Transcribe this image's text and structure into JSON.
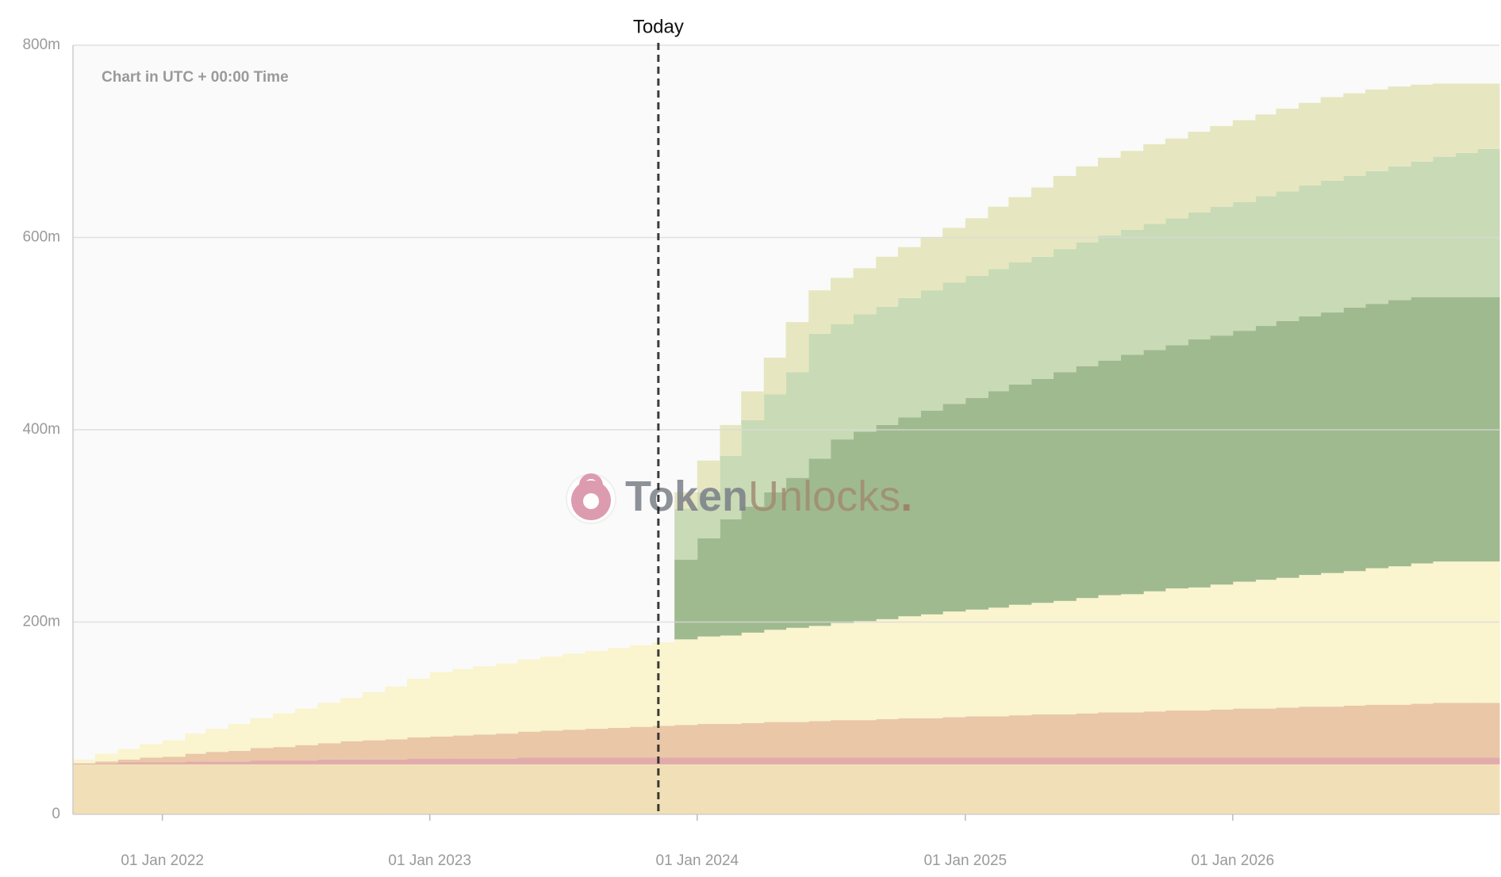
{
  "chart_data": {
    "type": "area",
    "step": true,
    "stacked": true,
    "grid": true,
    "note": "Chart in UTC + 00:00 Time",
    "today": {
      "label": "Today",
      "x": "2023-11-09"
    },
    "watermark": [
      "Token",
      "Unlocks",
      "."
    ],
    "xlim": [
      "2021-09-01",
      "2026-12-31"
    ],
    "xticks": [
      {
        "value": "2022-01-01",
        "label": "01 Jan 2022"
      },
      {
        "value": "2023-01-01",
        "label": "01 Jan 2023"
      },
      {
        "value": "2024-01-01",
        "label": "01 Jan 2024"
      },
      {
        "value": "2025-01-01",
        "label": "01 Jan 2025"
      },
      {
        "value": "2026-01-01",
        "label": "01 Jan 2026"
      }
    ],
    "ylim": [
      0,
      800
    ],
    "yticks": [
      0,
      {
        "value": 200,
        "label": "200m"
      },
      {
        "value": 400,
        "label": "400m"
      },
      {
        "value": 600,
        "label": "600m"
      },
      {
        "value": 800,
        "label": "800m"
      }
    ],
    "x": [
      "2021-09-01",
      "2021-10-01",
      "2021-11-01",
      "2021-12-01",
      "2022-01-01",
      "2022-02-01",
      "2022-03-01",
      "2022-04-01",
      "2022-05-01",
      "2022-06-01",
      "2022-07-01",
      "2022-08-01",
      "2022-09-01",
      "2022-10-01",
      "2022-11-01",
      "2022-12-01",
      "2023-01-01",
      "2023-02-01",
      "2023-03-01",
      "2023-04-01",
      "2023-05-01",
      "2023-06-01",
      "2023-07-01",
      "2023-08-01",
      "2023-09-01",
      "2023-10-01",
      "2023-11-01",
      "2023-12-01",
      "2024-01-01",
      "2024-02-01",
      "2024-03-01",
      "2024-04-01",
      "2024-05-01",
      "2024-06-01",
      "2024-07-01",
      "2024-08-01",
      "2024-09-01",
      "2024-10-01",
      "2024-11-01",
      "2024-12-01",
      "2025-01-01",
      "2025-02-01",
      "2025-03-01",
      "2025-04-01",
      "2025-05-01",
      "2025-06-01",
      "2025-07-01",
      "2025-08-01",
      "2025-09-01",
      "2025-10-01",
      "2025-11-01",
      "2025-12-01",
      "2026-01-01",
      "2026-02-01",
      "2026-03-01",
      "2026-04-01",
      "2026-05-01",
      "2026-06-01",
      "2026-07-01",
      "2026-08-01",
      "2026-09-01",
      "2026-10-01",
      "2026-11-01",
      "2026-12-01"
    ],
    "series": [
      {
        "color": "#f1e0b7",
        "values": [
          52,
          52,
          52,
          52,
          52,
          52,
          52,
          52,
          52,
          52,
          52,
          52,
          52,
          52,
          52,
          52,
          52,
          52,
          52,
          52,
          52,
          52,
          52,
          52,
          52,
          52,
          52,
          52,
          52,
          52,
          52,
          52,
          52,
          52,
          52,
          52,
          52,
          52,
          52,
          52,
          52,
          52,
          52,
          52,
          52,
          52,
          52,
          52,
          52,
          52,
          52,
          52,
          52,
          52,
          52,
          52,
          52,
          52,
          52,
          52,
          52,
          52,
          52,
          52
        ]
      },
      {
        "color": "#e2abab",
        "values": [
          1,
          1,
          2,
          2,
          2,
          3,
          3,
          3,
          4,
          4,
          4,
          5,
          5,
          5,
          5,
          6,
          6,
          6,
          6,
          6,
          7,
          7,
          7,
          7,
          7,
          7,
          7,
          7,
          7,
          7,
          7,
          7,
          7,
          7,
          7,
          7,
          7,
          7,
          7,
          7,
          7,
          7,
          7,
          7,
          7,
          7,
          7,
          7,
          7,
          7,
          7,
          7,
          7,
          7,
          7,
          7,
          7,
          7,
          7,
          7,
          7,
          7,
          7,
          7
        ]
      },
      {
        "color": "#e9c7a7",
        "values": [
          0,
          2,
          3,
          5,
          6,
          8,
          10,
          11,
          13,
          14,
          16,
          17,
          19,
          20,
          21,
          22,
          23,
          24,
          25,
          26,
          27,
          28,
          29,
          30,
          31,
          32,
          33,
          34,
          35,
          35,
          36,
          37,
          37,
          38,
          39,
          39,
          40,
          41,
          41,
          42,
          43,
          43,
          44,
          45,
          45,
          46,
          47,
          47,
          48,
          49,
          49,
          50,
          51,
          51,
          52,
          53,
          53,
          54,
          55,
          55,
          56,
          57,
          57,
          57
        ]
      },
      {
        "color": "#faf4cf",
        "values": [
          4,
          8,
          11,
          14,
          17,
          21,
          24,
          28,
          31,
          35,
          38,
          42,
          45,
          50,
          55,
          61,
          67,
          69,
          71,
          73,
          75,
          77,
          79,
          81,
          83,
          85,
          87,
          89,
          91,
          92,
          94,
          96,
          98,
          99,
          101,
          103,
          104,
          106,
          108,
          110,
          111,
          113,
          115,
          116,
          118,
          120,
          122,
          123,
          125,
          127,
          128,
          130,
          132,
          134,
          135,
          137,
          139,
          140,
          142,
          144,
          146,
          147,
          147,
          147
        ]
      },
      {
        "color": "#a0ba8f",
        "values": [
          null,
          null,
          null,
          null,
          null,
          null,
          null,
          null,
          null,
          null,
          null,
          null,
          null,
          null,
          null,
          null,
          null,
          null,
          null,
          null,
          null,
          null,
          null,
          null,
          null,
          null,
          null,
          83,
          102,
          121,
          131,
          143,
          156,
          174,
          191,
          197,
          202,
          207,
          212,
          216,
          220,
          225,
          229,
          233,
          238,
          241,
          244,
          249,
          251,
          253,
          258,
          259,
          261,
          264,
          267,
          269,
          271,
          274,
          275,
          277,
          277,
          275,
          275,
          275
        ]
      },
      {
        "color": "#c9dab6",
        "values": [
          null,
          null,
          null,
          null,
          null,
          null,
          null,
          null,
          null,
          null,
          null,
          null,
          null,
          null,
          null,
          null,
          null,
          null,
          null,
          null,
          null,
          null,
          null,
          null,
          null,
          null,
          null,
          53,
          48,
          66,
          90,
          102,
          110,
          130,
          120,
          122,
          123,
          124,
          125,
          126,
          127,
          127,
          127,
          127,
          128,
          129,
          130,
          130,
          131,
          132,
          132,
          134,
          134,
          135,
          135,
          136,
          137,
          137,
          138,
          139,
          141,
          146,
          150,
          154
        ]
      },
      {
        "color": "#e6e7c0",
        "values": [
          null,
          null,
          null,
          null,
          null,
          null,
          null,
          null,
          null,
          null,
          null,
          null,
          null,
          null,
          null,
          null,
          null,
          null,
          null,
          null,
          null,
          null,
          null,
          null,
          null,
          null,
          null,
          17,
          33,
          32,
          30,
          38,
          52,
          45,
          48,
          48,
          52,
          53,
          55,
          57,
          60,
          65,
          68,
          72,
          76,
          79,
          81,
          82,
          83,
          83,
          84,
          84,
          85,
          85,
          86,
          86,
          87,
          86,
          85,
          83,
          80,
          76,
          72,
          68
        ]
      }
    ]
  }
}
